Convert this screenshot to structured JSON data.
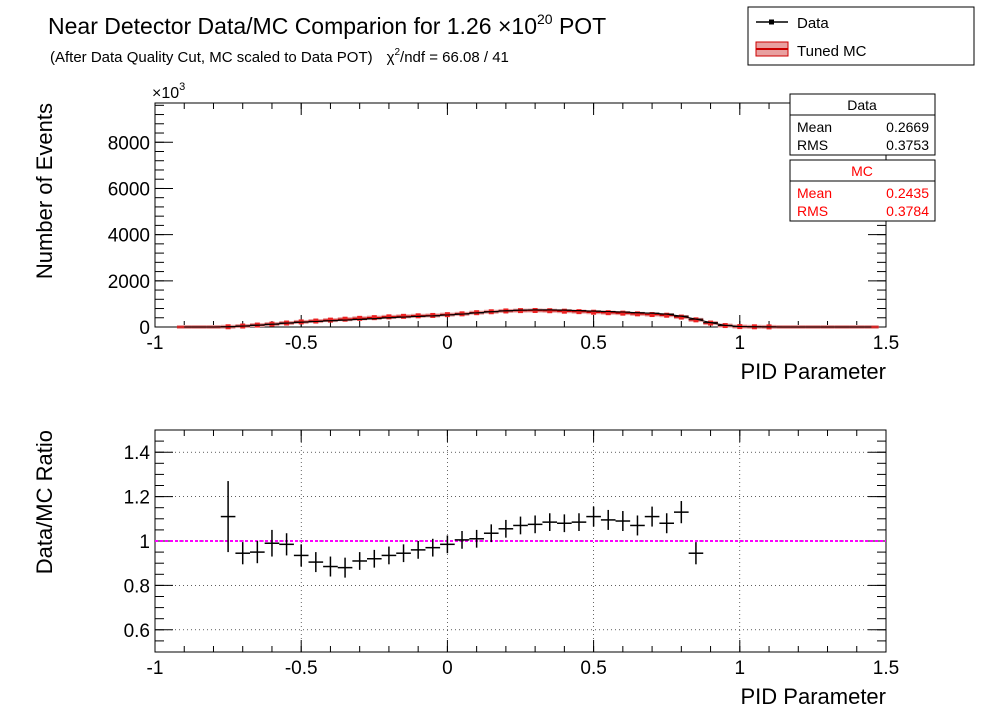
{
  "title": {
    "main": "Near Detector Data/MC Comparion for 1.26 ",
    "times": "×10",
    "exponent": "20",
    "suffix": " POT"
  },
  "subtitle": {
    "text": "(After Data Quality Cut, MC scaled to Data POT)",
    "chi_label": "χ",
    "chi_sup": "2",
    "chi_value": "/ndf = 66.08 / 41"
  },
  "legend": {
    "placement": "top-right",
    "entries": [
      {
        "label": "Data",
        "color": "#000000"
      },
      {
        "label": "Tuned MC",
        "color": "#cc0000"
      }
    ]
  },
  "stats": {
    "data": {
      "title": "Data",
      "mean_label": "Mean",
      "mean": "0.2669",
      "rms_label": "RMS",
      "rms": "0.3753",
      "color": "#000000"
    },
    "mc": {
      "title": "MC",
      "mean_label": "Mean",
      "mean": "0.2435",
      "rms_label": "RMS",
      "rms": "0.3784",
      "color": "#ff0000"
    }
  },
  "chart_data": [
    {
      "type": "line",
      "xlabel": "PID Parameter",
      "ylabel": "Number of Events",
      "y_multiplier": "×10",
      "y_multiplier_exp": "3",
      "xlim": [
        -1,
        1.5
      ],
      "ylim": [
        0,
        9700
      ],
      "x_ticks": [
        "-1",
        "-0.5",
        "0",
        "0.5",
        "1",
        "1.5"
      ],
      "x_tick_values": [
        -1,
        -0.5,
        0,
        0.5,
        1,
        1.5
      ],
      "y_ticks": [
        "0",
        "2000",
        "4000",
        "6000",
        "8000"
      ],
      "y_tick_values": [
        0,
        2000,
        4000,
        6000,
        8000
      ],
      "grid": false,
      "x": [
        -0.9,
        -0.85,
        -0.8,
        -0.75,
        -0.7,
        -0.65,
        -0.6,
        -0.55,
        -0.5,
        -0.45,
        -0.4,
        -0.35,
        -0.3,
        -0.25,
        -0.2,
        -0.15,
        -0.1,
        -0.05,
        0,
        0.05,
        0.1,
        0.15,
        0.2,
        0.25,
        0.3,
        0.35,
        0.4,
        0.45,
        0.5,
        0.55,
        0.6,
        0.65,
        0.7,
        0.75,
        0.8,
        0.85,
        0.9,
        0.95,
        1,
        1.05,
        1.1,
        1.15,
        1.2,
        1.25,
        1.3,
        1.35,
        1.4,
        1.45
      ],
      "series": [
        {
          "name": "Data",
          "color": "#000000",
          "values": [
            0,
            0,
            0,
            10,
            40,
            80,
            120,
            170,
            210,
            240,
            270,
            300,
            330,
            360,
            400,
            430,
            460,
            480,
            520,
            560,
            610,
            660,
            700,
            730,
            740,
            740,
            730,
            710,
            690,
            670,
            650,
            620,
            600,
            560,
            470,
            340,
            190,
            70,
            20,
            10,
            5,
            0,
            0,
            0,
            0,
            0,
            0,
            0
          ]
        },
        {
          "name": "Tuned MC",
          "color": "#cc0000",
          "values": [
            0,
            0,
            0,
            10,
            42,
            84,
            126,
            172,
            220,
            258,
            298,
            338,
            375,
            405,
            440,
            462,
            485,
            500,
            535,
            570,
            620,
            660,
            695,
            710,
            715,
            705,
            685,
            665,
            640,
            620,
            600,
            570,
            540,
            510,
            430,
            310,
            170,
            63,
            18,
            9,
            5,
            0,
            0,
            0,
            0,
            0,
            0,
            0
          ]
        }
      ]
    },
    {
      "type": "scatter",
      "xlabel": "PID Parameter",
      "ylabel": "Data/MC Ratio",
      "xlim": [
        -1,
        1.5
      ],
      "ylim": [
        0.5,
        1.5
      ],
      "x_ticks": [
        "-1",
        "-0.5",
        "0",
        "0.5",
        "1",
        "1.5"
      ],
      "x_tick_values": [
        -1,
        -0.5,
        0,
        0.5,
        1,
        1.5
      ],
      "y_ticks": [
        "0.6",
        "0.8",
        "1",
        "1.2",
        "1.4"
      ],
      "y_tick_values": [
        0.6,
        0.8,
        1.0,
        1.2,
        1.4
      ],
      "grid": true,
      "reference_line": {
        "y": 1.0,
        "color": "#ff00ff"
      },
      "points": [
        {
          "x": -0.75,
          "y": 1.11,
          "err": 0.16
        },
        {
          "x": -0.7,
          "y": 0.945,
          "err": 0.05
        },
        {
          "x": -0.65,
          "y": 0.95,
          "err": 0.05
        },
        {
          "x": -0.6,
          "y": 0.99,
          "err": 0.06
        },
        {
          "x": -0.55,
          "y": 0.985,
          "err": 0.05
        },
        {
          "x": -0.5,
          "y": 0.935,
          "err": 0.05
        },
        {
          "x": -0.45,
          "y": 0.905,
          "err": 0.045
        },
        {
          "x": -0.4,
          "y": 0.885,
          "err": 0.045
        },
        {
          "x": -0.35,
          "y": 0.88,
          "err": 0.045
        },
        {
          "x": -0.3,
          "y": 0.91,
          "err": 0.04
        },
        {
          "x": -0.25,
          "y": 0.92,
          "err": 0.04
        },
        {
          "x": -0.2,
          "y": 0.935,
          "err": 0.04
        },
        {
          "x": -0.15,
          "y": 0.945,
          "err": 0.04
        },
        {
          "x": -0.1,
          "y": 0.96,
          "err": 0.04
        },
        {
          "x": -0.05,
          "y": 0.97,
          "err": 0.04
        },
        {
          "x": 0.0,
          "y": 0.985,
          "err": 0.04
        },
        {
          "x": 0.05,
          "y": 1.005,
          "err": 0.04
        },
        {
          "x": 0.1,
          "y": 1.01,
          "err": 0.04
        },
        {
          "x": 0.15,
          "y": 1.035,
          "err": 0.04
        },
        {
          "x": 0.2,
          "y": 1.055,
          "err": 0.04
        },
        {
          "x": 0.25,
          "y": 1.07,
          "err": 0.04
        },
        {
          "x": 0.3,
          "y": 1.075,
          "err": 0.04
        },
        {
          "x": 0.35,
          "y": 1.085,
          "err": 0.04
        },
        {
          "x": 0.4,
          "y": 1.08,
          "err": 0.04
        },
        {
          "x": 0.45,
          "y": 1.085,
          "err": 0.04
        },
        {
          "x": 0.5,
          "y": 1.11,
          "err": 0.045
        },
        {
          "x": 0.55,
          "y": 1.095,
          "err": 0.045
        },
        {
          "x": 0.6,
          "y": 1.09,
          "err": 0.045
        },
        {
          "x": 0.65,
          "y": 1.07,
          "err": 0.045
        },
        {
          "x": 0.7,
          "y": 1.11,
          "err": 0.045
        },
        {
          "x": 0.75,
          "y": 1.08,
          "err": 0.045
        },
        {
          "x": 0.8,
          "y": 1.13,
          "err": 0.05
        },
        {
          "x": 0.85,
          "y": 0.945,
          "err": 0.05
        }
      ]
    }
  ]
}
